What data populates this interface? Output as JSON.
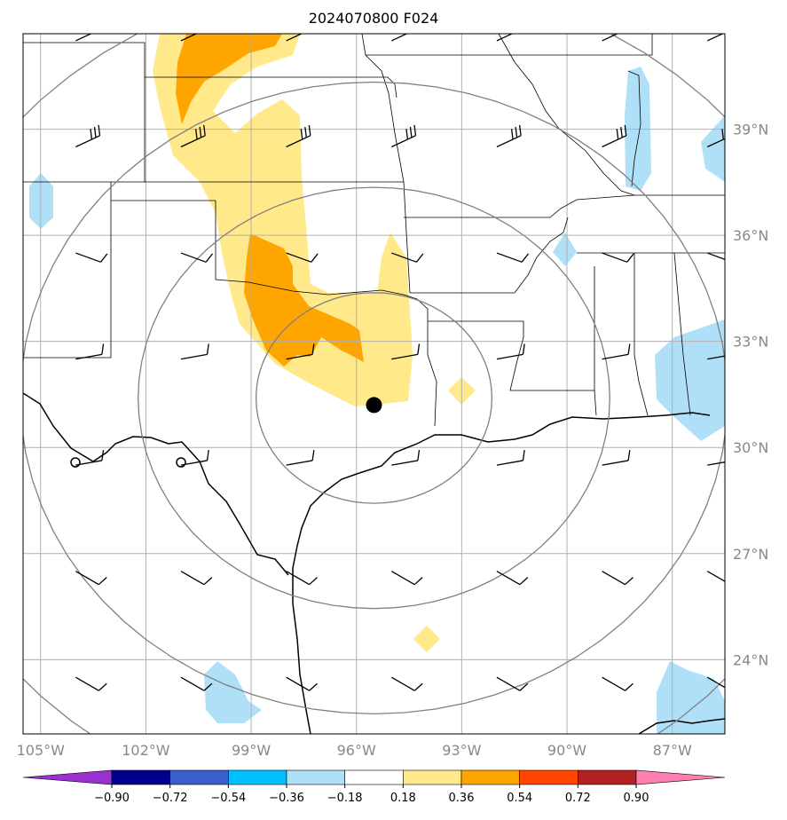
{
  "title": "2024070800 F024",
  "map": {
    "lon_range": [
      -105.5,
      -85.5
    ],
    "lat_range": [
      21.9,
      41.7
    ],
    "lon_ticks": [
      {
        "lon": -105,
        "label": "105°W"
      },
      {
        "lon": -102,
        "label": "102°W"
      },
      {
        "lon": -99,
        "label": "99°W"
      },
      {
        "lon": -96,
        "label": "96°W"
      },
      {
        "lon": -93,
        "label": "93°W"
      },
      {
        "lon": -90,
        "label": "90°W"
      },
      {
        "lon": -87,
        "label": "87°W"
      }
    ],
    "lat_ticks": [
      {
        "lat": 39,
        "label": "39°N"
      },
      {
        "lat": 36,
        "label": "36°N"
      },
      {
        "lat": 33,
        "label": "33°N"
      },
      {
        "lat": 30,
        "label": "30°N"
      },
      {
        "lat": 27,
        "label": "27°N"
      },
      {
        "lat": 24,
        "label": "24°N"
      }
    ],
    "grid": true,
    "center_point": {
      "lon": -95.5,
      "lat": 31.2
    },
    "range_rings": [
      3,
      6,
      9,
      12
    ],
    "colors": {
      "grid": "#b0b0b0",
      "rings": "#808080",
      "borders": "#000000"
    }
  },
  "colorbar": {
    "ticks": [
      "−0.90",
      "−0.72",
      "−0.54",
      "−0.36",
      "−0.18",
      "0.18",
      "0.36",
      "0.54",
      "0.72",
      "0.90"
    ],
    "colors": [
      "#9b30d0",
      "#00008b",
      "#3a5fcd",
      "#00bfff",
      "#b0e0f8",
      "#ffffff",
      "#ffe98a",
      "#ffa500",
      "#ff4500",
      "#b22222",
      "#ff80b0"
    ],
    "extend": "both"
  },
  "fields": {
    "positive_light": "#ffe98a",
    "positive_mid": "#ffa500",
    "negative_light": "#b0e0f8"
  },
  "chart_data": {
    "type": "heatmap",
    "title": "2024070800 F024",
    "xlabel": "",
    "ylabel": "",
    "levels": [
      -0.9,
      -0.72,
      -0.54,
      -0.36,
      -0.18,
      0.18,
      0.36,
      0.54,
      0.72,
      0.9
    ],
    "positive_regions": [
      {
        "level": "0.36-0.54",
        "description_lon": [
          -101,
          -98.5
        ],
        "lat": [
          38.5,
          41.7
        ]
      },
      {
        "level": "0.18-0.36",
        "lon": [
          -101.5,
          -95
        ],
        "lat": [
          30.5,
          41.7
        ]
      },
      {
        "level": "0.36-0.54",
        "lon": [
          -99,
          -95.8
        ],
        "lat": [
          31.9,
          35.5
        ]
      }
    ],
    "barbs": [
      {
        "lon": -104,
        "lat": 41.5
      },
      {
        "lon": -101,
        "lat": 41.5
      },
      {
        "lon": -98,
        "lat": 41.5
      },
      {
        "lon": -95,
        "lat": 41.5
      },
      {
        "lon": -92,
        "lat": 41.5
      },
      {
        "lon": -89,
        "lat": 41.5
      },
      {
        "lon": -86,
        "lat": 41.5
      },
      {
        "lon": -104,
        "lat": 38.5
      },
      {
        "lon": -101,
        "lat": 38.5
      },
      {
        "lon": -98,
        "lat": 38.5
      },
      {
        "lon": -95,
        "lat": 38.5
      },
      {
        "lon": -92,
        "lat": 38.5
      },
      {
        "lon": -89,
        "lat": 38.5
      },
      {
        "lon": -86,
        "lat": 38.5
      },
      {
        "lon": -104,
        "lat": 35.5
      },
      {
        "lon": -101,
        "lat": 35.5
      },
      {
        "lon": -98,
        "lat": 35.5
      },
      {
        "lon": -95,
        "lat": 35.5
      },
      {
        "lon": -92,
        "lat": 35.5
      },
      {
        "lon": -89,
        "lat": 35.5
      },
      {
        "lon": -86,
        "lat": 35.5
      },
      {
        "lon": -104,
        "lat": 32.5
      },
      {
        "lon": -101,
        "lat": 32.5
      },
      {
        "lon": -98,
        "lat": 32.5
      },
      {
        "lon": -95,
        "lat": 32.5
      },
      {
        "lon": -92,
        "lat": 32.5
      },
      {
        "lon": -89,
        "lat": 32.5
      },
      {
        "lon": -86,
        "lat": 32.5
      },
      {
        "lon": -104,
        "lat": 29.5
      },
      {
        "lon": -101,
        "lat": 29.5
      },
      {
        "lon": -98,
        "lat": 29.5
      },
      {
        "lon": -95,
        "lat": 29.5
      },
      {
        "lon": -92,
        "lat": 29.5
      },
      {
        "lon": -89,
        "lat": 29.5
      },
      {
        "lon": -86,
        "lat": 29.5
      },
      {
        "lon": -104,
        "lat": 26.5
      },
      {
        "lon": -101,
        "lat": 26.5
      },
      {
        "lon": -98,
        "lat": 26.5
      },
      {
        "lon": -95,
        "lat": 26.5
      },
      {
        "lon": -92,
        "lat": 26.5
      },
      {
        "lon": -89,
        "lat": 26.5
      },
      {
        "lon": -86,
        "lat": 26.5
      },
      {
        "lon": -104,
        "lat": 23.5
      },
      {
        "lon": -101,
        "lat": 23.5
      },
      {
        "lon": -98,
        "lat": 23.5
      },
      {
        "lon": -95,
        "lat": 23.5
      },
      {
        "lon": -92,
        "lat": 23.5
      },
      {
        "lon": -89,
        "lat": 23.5
      },
      {
        "lon": -86,
        "lat": 23.5
      }
    ]
  }
}
